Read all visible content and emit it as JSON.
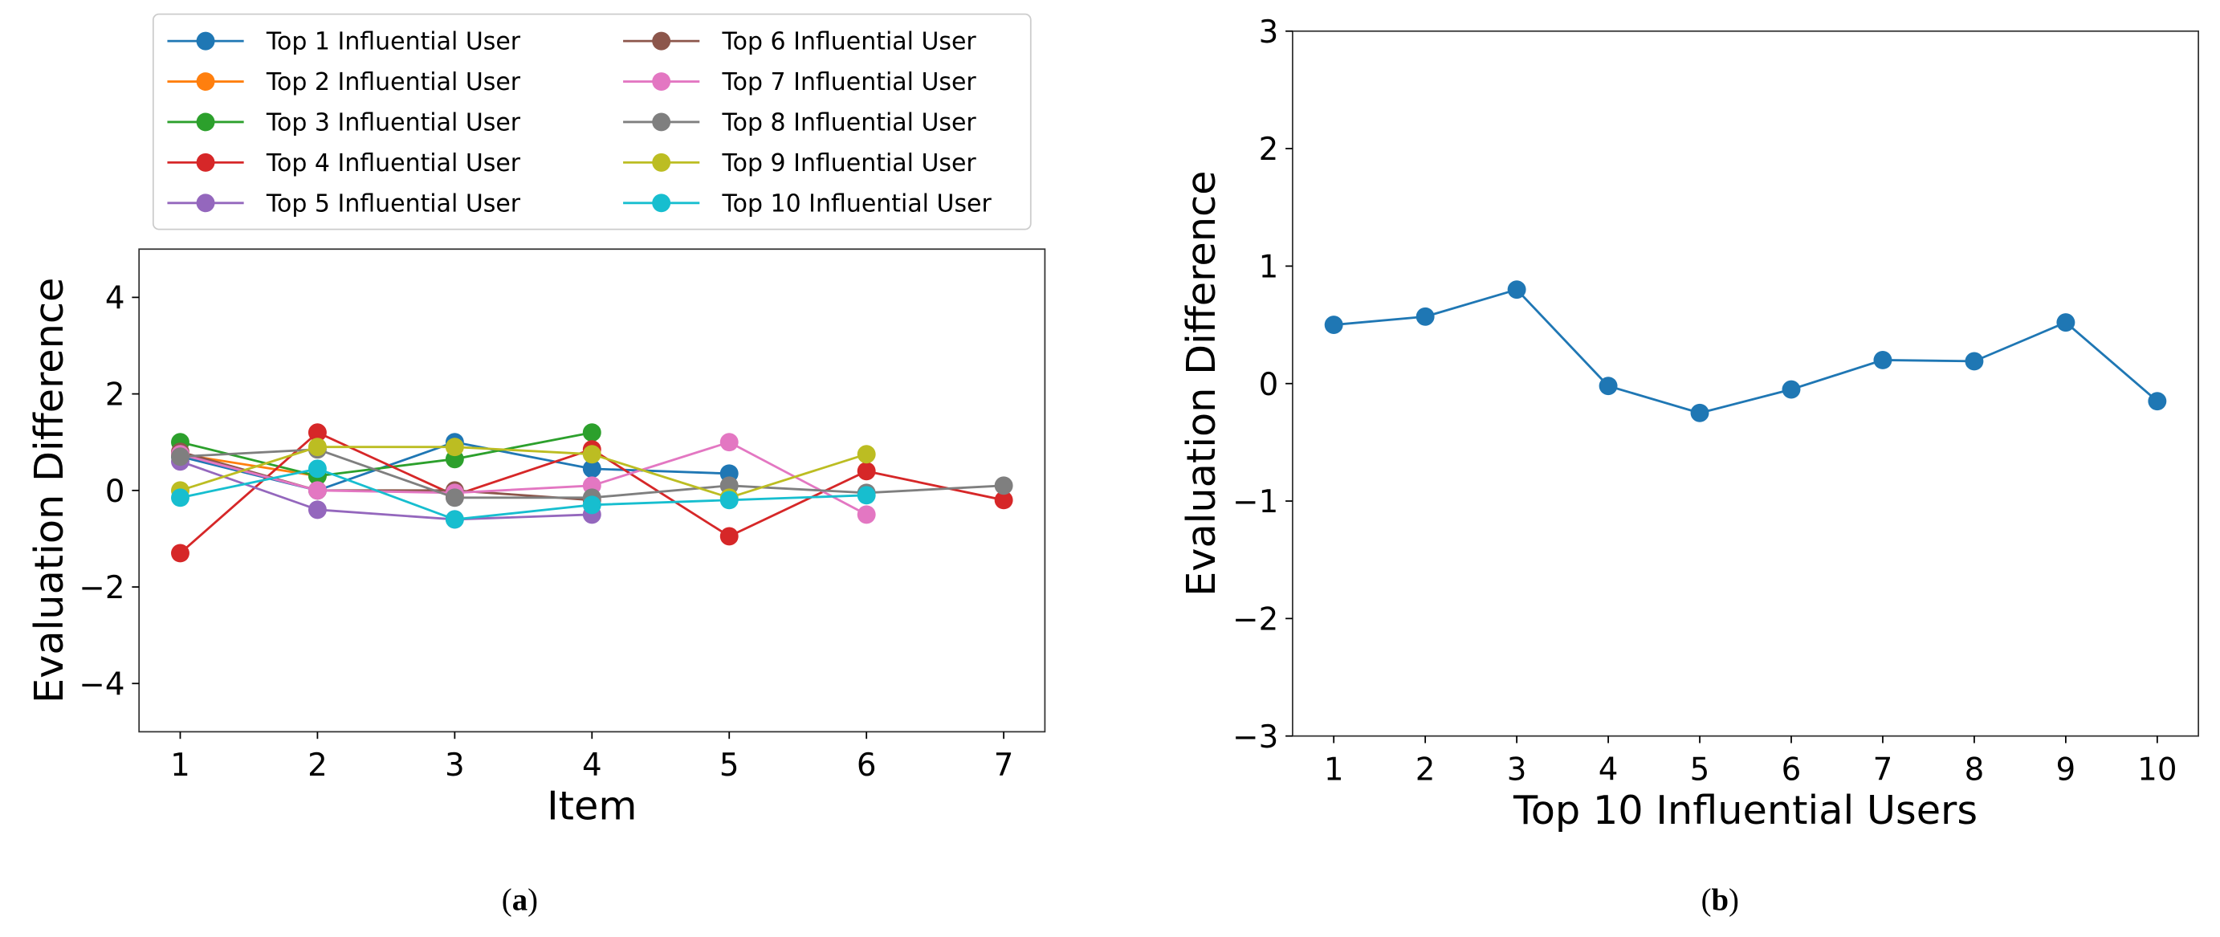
{
  "chart_data": [
    {
      "type": "line",
      "caption_letter": "a",
      "xlabel": "Item",
      "ylabel": "Evaluation Difference",
      "xlim": [
        0.7,
        7.3
      ],
      "ylim": [
        -5,
        5
      ],
      "xticks": [
        1,
        2,
        3,
        4,
        5,
        6,
        7
      ],
      "yticks": [
        -4,
        -2,
        0,
        2,
        4
      ],
      "ytick_labels": [
        "−4",
        "−2",
        "0",
        "2",
        "4"
      ],
      "legend_placement": "top (above plot), 2 columns",
      "series": [
        {
          "name": "Top 1 Influential User",
          "color": "#1f77b4",
          "values": [
            0.7,
            0.0,
            1.0,
            0.45,
            0.35
          ]
        },
        {
          "name": "Top 2 Influential User",
          "color": "#ff7f0e",
          "values": [
            0.75,
            0.3
          ]
        },
        {
          "name": "Top 3 Influential User",
          "color": "#2ca02c",
          "values": [
            1.0,
            0.3,
            0.65,
            1.2
          ]
        },
        {
          "name": "Top 4 Influential User",
          "color": "#d62728",
          "values": [
            -1.3,
            1.2,
            -0.1,
            0.85,
            -0.95,
            0.4,
            -0.2
          ]
        },
        {
          "name": "Top 5 Influential User",
          "color": "#9467bd",
          "values": [
            0.6,
            -0.4,
            -0.6,
            -0.5
          ]
        },
        {
          "name": "Top 6 Influential User",
          "color": "#8c564b",
          "values": [
            0.8,
            0.0,
            0.0,
            -0.2
          ]
        },
        {
          "name": "Top 7 Influential User",
          "color": "#e377c2",
          "values": [
            0.75,
            0.0,
            -0.05,
            0.1,
            1.0,
            -0.5
          ]
        },
        {
          "name": "Top 8 Influential User",
          "color": "#7f7f7f",
          "values": [
            0.7,
            0.85,
            -0.15,
            -0.15,
            0.1,
            -0.05,
            0.1
          ]
        },
        {
          "name": "Top 9 Influential User",
          "color": "#bcbd22",
          "values": [
            0.0,
            0.9,
            0.9,
            0.75,
            -0.15,
            0.75
          ]
        },
        {
          "name": "Top 10 Influential User",
          "color": "#17becf",
          "values": [
            -0.15,
            0.45,
            -0.6,
            -0.3,
            -0.2,
            -0.1
          ]
        }
      ]
    },
    {
      "type": "line",
      "caption_letter": "b",
      "xlabel": "Top 10 Influential Users",
      "ylabel": "Evaluation Difference",
      "xlim": [
        0.55,
        10.45
      ],
      "ylim": [
        -3,
        3
      ],
      "xticks": [
        1,
        2,
        3,
        4,
        5,
        6,
        7,
        8,
        9,
        10
      ],
      "yticks": [
        -3,
        -2,
        -1,
        0,
        1,
        2,
        3
      ],
      "ytick_labels": [
        "−3",
        "−2",
        "−1",
        "0",
        "1",
        "2",
        "3"
      ],
      "series": [
        {
          "name": "Evaluation Difference",
          "color": "#1f77b4",
          "x": [
            1,
            2,
            3,
            4,
            5,
            6,
            7,
            8,
            9,
            10
          ],
          "values": [
            0.5,
            0.57,
            0.8,
            -0.02,
            -0.25,
            -0.05,
            0.2,
            0.19,
            0.52,
            -0.15
          ]
        }
      ]
    }
  ]
}
